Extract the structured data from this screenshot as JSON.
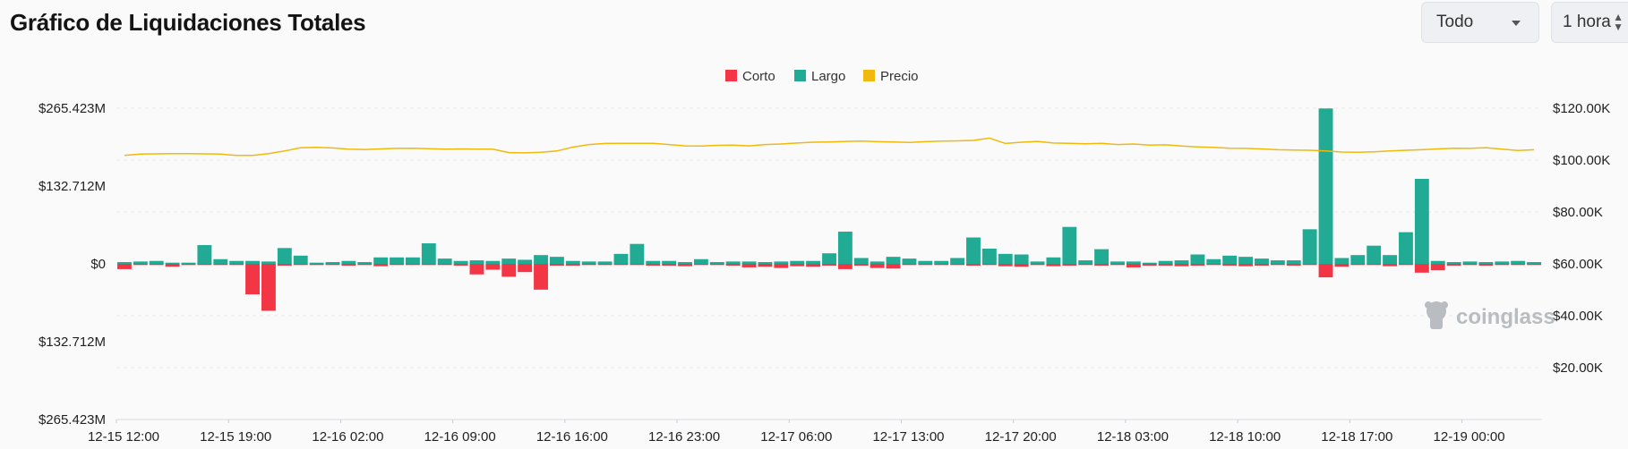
{
  "header": {
    "title": "Gráfico de Liquidaciones Totales",
    "range_select": "Todo",
    "interval_select": "1 hora"
  },
  "watermark": "coinglass",
  "colors": {
    "short": "#f23645",
    "long": "#22ab94",
    "price": "#f0b90b"
  },
  "chart_data": {
    "type": "bar",
    "title": "Gráfico de Liquidaciones Totales",
    "legend": [
      "Corto",
      "Largo",
      "Precio"
    ],
    "legend_position": "top-center",
    "x_tick_labels": [
      "12-15 12:00",
      "12-15 19:00",
      "12-16 02:00",
      "12-16 09:00",
      "12-16 16:00",
      "12-16 23:00",
      "12-17 06:00",
      "12-17 13:00",
      "12-17 20:00",
      "12-18 03:00",
      "12-18 10:00",
      "12-18 17:00",
      "12-19 00:00"
    ],
    "y_left_ticks": [
      "$265.423M",
      "$132.712M",
      "$0",
      "$132.712M",
      "$265.423M"
    ],
    "y_left_range": [
      -265.423,
      265.423
    ],
    "y_right_ticks": [
      "$120.00K",
      "$100.00K",
      "$80.00K",
      "$60.00K",
      "$40.00K",
      "$20.00K"
    ],
    "y_right_range": [
      0,
      120000
    ],
    "units_left": "millions USD",
    "grid": true,
    "series": [
      {
        "name": "Largo",
        "values": [
          3,
          4,
          5,
          2,
          2,
          32,
          8,
          5,
          5,
          4,
          27,
          14,
          2,
          3,
          5,
          3,
          11,
          11,
          11,
          35,
          9,
          5,
          6,
          5,
          9,
          7,
          15,
          12,
          5,
          4,
          4,
          17,
          34,
          5,
          5,
          3,
          8,
          3,
          4,
          4,
          3,
          4,
          5,
          5,
          18,
          55,
          10,
          4,
          12,
          9,
          5,
          5,
          10,
          45,
          26,
          17,
          16,
          4,
          11,
          63,
          6,
          25,
          4,
          4,
          2,
          5,
          6,
          16,
          8,
          14,
          12,
          9,
          6,
          6,
          59,
          265,
          10,
          15,
          31,
          15,
          54,
          145,
          5,
          3,
          4,
          3,
          4,
          5,
          3
        ]
      },
      {
        "name": "Corto",
        "values": [
          -9,
          -2,
          -2,
          -5,
          -2,
          -2,
          -2,
          -2,
          -52,
          -80,
          -3,
          -2,
          -2,
          -2,
          -3,
          -2,
          -4,
          -2,
          -2,
          -2,
          -2,
          -3,
          -18,
          -10,
          -22,
          -14,
          -44,
          -3,
          -3,
          -2,
          -2,
          -2,
          -2,
          -3,
          -3,
          -4,
          -2,
          -2,
          -3,
          -6,
          -5,
          -7,
          -4,
          -5,
          -3,
          -9,
          -3,
          -7,
          -8,
          -2,
          -2,
          -2,
          -2,
          -3,
          -2,
          -4,
          -5,
          -2,
          -4,
          -3,
          -2,
          -3,
          -2,
          -6,
          -3,
          -3,
          -4,
          -3,
          -2,
          -3,
          -4,
          -3,
          -2,
          -3,
          -2,
          -23,
          -5,
          -2,
          -2,
          -4,
          -2,
          -15,
          -11,
          -3,
          -2,
          -3,
          -2,
          -2,
          -2
        ]
      },
      {
        "name": "Precio",
        "values": [
          101800,
          102300,
          102400,
          102500,
          102500,
          102400,
          102300,
          101800,
          101800,
          102500,
          103500,
          104800,
          104900,
          104700,
          104200,
          104100,
          104300,
          104500,
          104600,
          104400,
          104200,
          104300,
          104200,
          104200,
          102900,
          102800,
          103000,
          103500,
          105000,
          106000,
          106400,
          106500,
          106500,
          106500,
          106000,
          105500,
          105400,
          105700,
          105800,
          105500,
          106000,
          106200,
          106600,
          106900,
          107000,
          107200,
          107300,
          107100,
          107000,
          106800,
          107100,
          107300,
          107400,
          107600,
          108500,
          106400,
          106900,
          107200,
          106600,
          106500,
          106300,
          106500,
          106000,
          106200,
          105800,
          105900,
          105400,
          105100,
          104900,
          104600,
          104500,
          104300,
          104000,
          103900,
          103800,
          103500,
          103100,
          103000,
          103200,
          103500,
          103800,
          104000,
          104300,
          104600,
          104500,
          104800,
          104200,
          103700,
          104000
        ]
      }
    ]
  }
}
